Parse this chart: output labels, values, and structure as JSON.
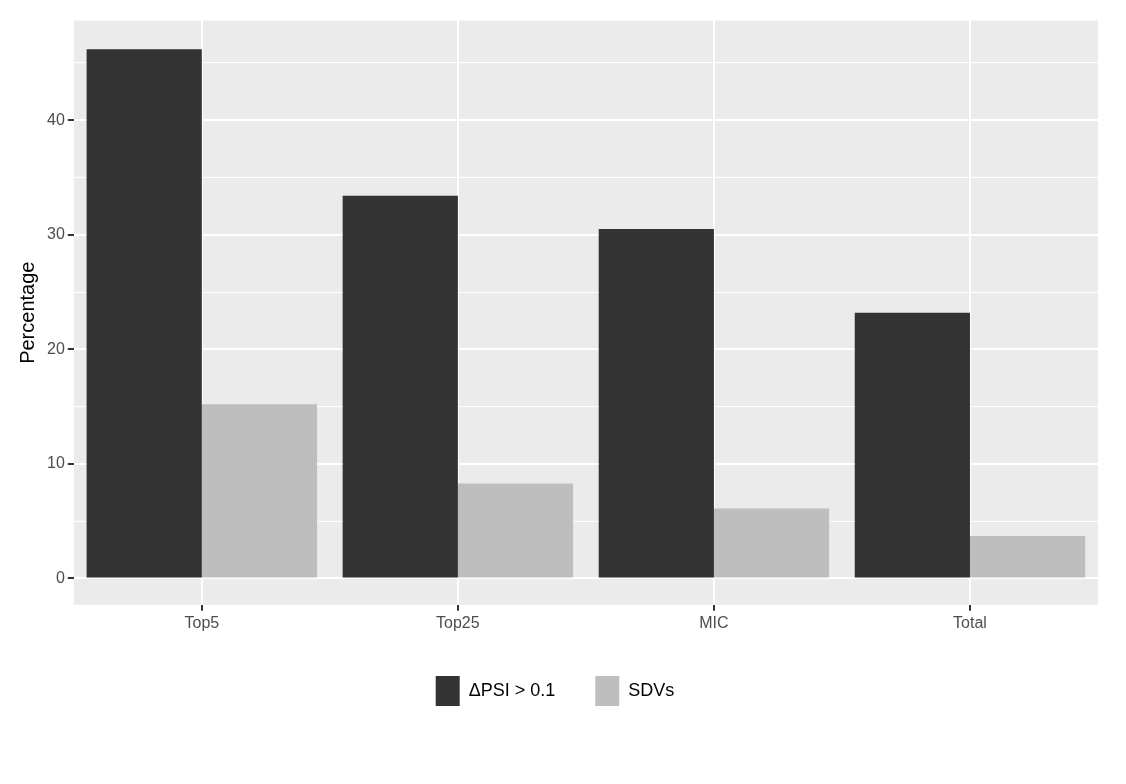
{
  "chart_data": {
    "type": "bar",
    "ylabel": "Percentage",
    "categories": [
      "Top5",
      "Top25",
      "MIC",
      "Total"
    ],
    "series": [
      {
        "name": "ΔPSI > 0.1",
        "color": "#333333",
        "values": [
          46.2,
          33.4,
          30.5,
          23.2
        ]
      },
      {
        "name": "SDVs",
        "color": "#bebebe",
        "values": [
          15.2,
          8.3,
          6.1,
          3.7
        ]
      }
    ],
    "ylim": [
      -2.3,
      48.7
    ],
    "yticks": [
      0,
      {
        "value": 5,
        "label": null
      },
      10,
      {
        "value": 15,
        "label": null
      },
      20,
      {
        "value": 25,
        "label": null
      },
      30,
      {
        "value": 35,
        "label": null
      },
      40,
      {
        "value": 45,
        "label": null
      }
    ],
    "grid": true,
    "legend": "bottom"
  }
}
